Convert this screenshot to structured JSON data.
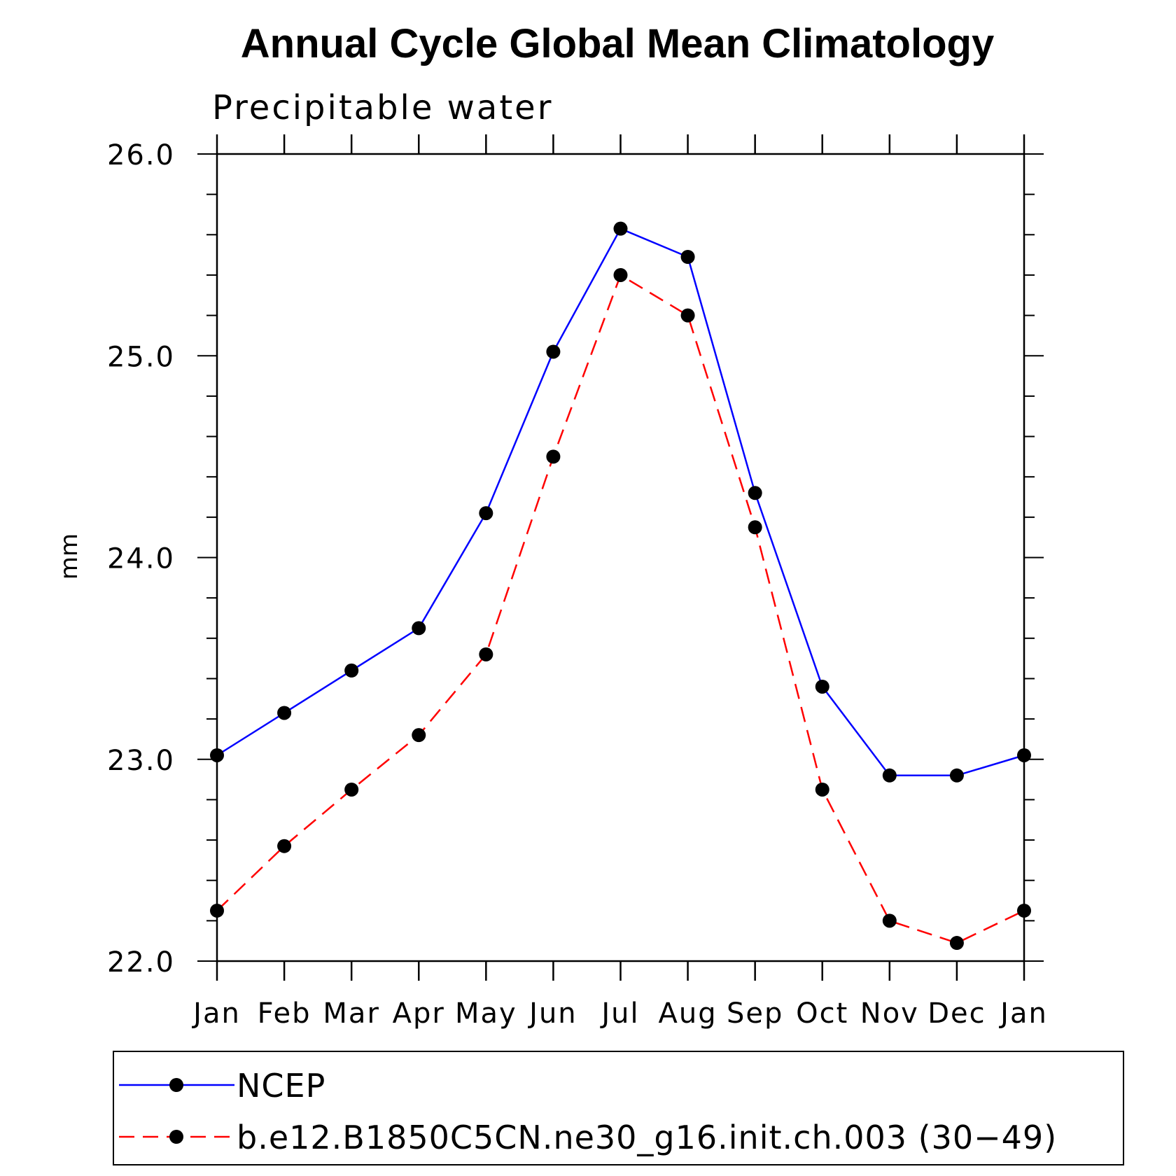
{
  "chart_data": {
    "type": "line",
    "title": "Annual Cycle Global Mean Climatology",
    "subtitle": "Precipitable water",
    "xlabel": "",
    "ylabel": "mm",
    "categories": [
      "Jan",
      "Feb",
      "Mar",
      "Apr",
      "May",
      "Jun",
      "Jul",
      "Aug",
      "Sep",
      "Oct",
      "Nov",
      "Dec",
      "Jan"
    ],
    "ylim": [
      22.0,
      26.0
    ],
    "yticks": [
      "22.0",
      "23.0",
      "24.0",
      "25.0",
      "26.0"
    ],
    "grid": false,
    "legend_position": "bottom",
    "series": [
      {
        "name": "NCEP",
        "color": "#0000ff",
        "line_style": "solid",
        "marker": "filled-circle",
        "values": [
          23.02,
          23.23,
          23.44,
          23.65,
          24.22,
          25.02,
          25.63,
          25.49,
          24.32,
          23.36,
          22.92,
          22.92,
          23.02
        ]
      },
      {
        "name": "b.e12.B1850C5CN.ne30_g16.init.ch.003 (30−49)",
        "color": "#ff0000",
        "line_style": "dashed",
        "marker": "filled-circle",
        "values": [
          22.25,
          22.57,
          22.85,
          23.12,
          23.52,
          24.5,
          25.4,
          25.2,
          24.15,
          22.85,
          22.2,
          22.09,
          22.25
        ]
      }
    ]
  }
}
